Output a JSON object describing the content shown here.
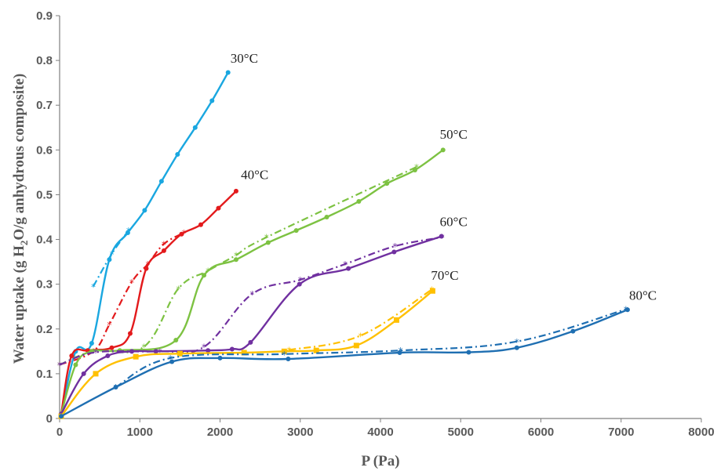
{
  "chart_data": {
    "type": "line",
    "title": "",
    "xlabel": "P (Pa)",
    "ylabel_parts": [
      "Water  uptake  (g H",
      "2",
      "O/g  anhydrous  composite)"
    ],
    "xlim": [
      0,
      8000
    ],
    "ylim": [
      0,
      0.9
    ],
    "x_ticks": [
      0,
      1000,
      2000,
      3000,
      4000,
      5000,
      6000,
      7000,
      8000
    ],
    "y_ticks": [
      0,
      0.1,
      0.2,
      0.3,
      0.4,
      0.5,
      0.6,
      0.7,
      0.8,
      0.9
    ],
    "y_tick_labels": [
      "0",
      "0.1",
      "0.2",
      "0.3",
      "0.4",
      "0.5",
      "0.6",
      "0.7",
      "0.8",
      "0.9"
    ],
    "grid": false,
    "legend": "none",
    "series": [
      {
        "label": "30°C",
        "color": "#1aa7e0",
        "marker": "circle",
        "label_at": [
          2130,
          0.795
        ],
        "adsorption": [
          [
            20,
            0.01
          ],
          [
            200,
            0.15
          ],
          [
            400,
            0.168
          ],
          [
            620,
            0.355
          ],
          [
            850,
            0.415
          ],
          [
            1060,
            0.465
          ],
          [
            1270,
            0.53
          ],
          [
            1470,
            0.59
          ],
          [
            1690,
            0.65
          ],
          [
            1900,
            0.71
          ],
          [
            2100,
            0.773
          ]
        ],
        "desorption": [
          [
            420,
            0.295
          ],
          [
            650,
            0.368
          ],
          [
            860,
            0.42
          ]
        ]
      },
      {
        "label": "40°C",
        "color": "#e31a1c",
        "marker": "circle",
        "label_at": [
          2260,
          0.535
        ],
        "adsorption": [
          [
            20,
            0.01
          ],
          [
            150,
            0.14
          ],
          [
            350,
            0.152
          ],
          [
            650,
            0.158
          ],
          [
            880,
            0.19
          ],
          [
            1080,
            0.335
          ],
          [
            1300,
            0.375
          ],
          [
            1520,
            0.412
          ],
          [
            1760,
            0.433
          ],
          [
            1980,
            0.47
          ],
          [
            2200,
            0.508
          ]
        ],
        "desorption": [
          [
            0,
            0.12
          ],
          [
            420,
            0.15
          ],
          [
            620,
            0.21
          ],
          [
            900,
            0.305
          ],
          [
            1100,
            0.345
          ],
          [
            1300,
            0.39
          ],
          [
            1550,
            0.415
          ]
        ]
      },
      {
        "label": "50°C",
        "color": "#7dc242",
        "marker": "circle",
        "label_at": [
          4740,
          0.625
        ],
        "adsorption": [
          [
            20,
            0.01
          ],
          [
            200,
            0.12
          ],
          [
            400,
            0.15
          ],
          [
            750,
            0.152
          ],
          [
            1450,
            0.175
          ],
          [
            1800,
            0.32
          ],
          [
            2200,
            0.355
          ],
          [
            2600,
            0.393
          ],
          [
            2950,
            0.42
          ],
          [
            3330,
            0.45
          ],
          [
            3730,
            0.485
          ],
          [
            4080,
            0.525
          ],
          [
            4430,
            0.555
          ],
          [
            4780,
            0.6
          ]
        ],
        "desorption": [
          [
            0,
            0.12
          ],
          [
            420,
            0.15
          ],
          [
            1050,
            0.16
          ],
          [
            1480,
            0.29
          ],
          [
            1850,
            0.33
          ],
          [
            2200,
            0.365
          ],
          [
            2580,
            0.405
          ],
          [
            4450,
            0.562
          ]
        ]
      },
      {
        "label": "60°C",
        "color": "#7030a0",
        "marker": "circle",
        "label_at": [
          4740,
          0.43
        ],
        "adsorption": [
          [
            20,
            0.01
          ],
          [
            300,
            0.1
          ],
          [
            600,
            0.14
          ],
          [
            900,
            0.15
          ],
          [
            1200,
            0.15
          ],
          [
            1850,
            0.152
          ],
          [
            2150,
            0.155
          ],
          [
            2380,
            0.17
          ],
          [
            2990,
            0.3
          ],
          [
            3600,
            0.335
          ],
          [
            4170,
            0.372
          ],
          [
            4760,
            0.407
          ]
        ],
        "desorption": [
          [
            0,
            0.12
          ],
          [
            450,
            0.148
          ],
          [
            1250,
            0.15
          ],
          [
            1800,
            0.16
          ],
          [
            2400,
            0.278
          ],
          [
            3000,
            0.31
          ],
          [
            3560,
            0.345
          ],
          [
            4180,
            0.385
          ],
          [
            4770,
            0.405
          ]
        ]
      },
      {
        "label": "70°C",
        "color": "#ffc000",
        "marker": "square",
        "label_at": [
          4630,
          0.31
        ],
        "adsorption": [
          [
            20,
            0.005
          ],
          [
            450,
            0.1
          ],
          [
            950,
            0.138
          ],
          [
            1500,
            0.145
          ],
          [
            2300,
            0.147
          ],
          [
            2800,
            0.15
          ],
          [
            3200,
            0.152
          ],
          [
            3700,
            0.163
          ],
          [
            4200,
            0.22
          ],
          [
            4650,
            0.285
          ]
        ],
        "desorption": [
          [
            2860,
            0.153
          ],
          [
            3750,
            0.185
          ],
          [
            4640,
            0.288
          ]
        ]
      },
      {
        "label": "80°C",
        "color": "#1f6fb2",
        "marker": "circle",
        "label_at": [
          7100,
          0.265
        ],
        "adsorption": [
          [
            20,
            0.005
          ],
          [
            700,
            0.07
          ],
          [
            1400,
            0.127
          ],
          [
            2000,
            0.135
          ],
          [
            2850,
            0.133
          ],
          [
            4240,
            0.147
          ],
          [
            5100,
            0.148
          ],
          [
            5700,
            0.158
          ],
          [
            6400,
            0.195
          ],
          [
            7080,
            0.243
          ]
        ],
        "desorption": [
          [
            700,
            0.07
          ],
          [
            1380,
            0.135
          ],
          [
            2800,
            0.144
          ],
          [
            4250,
            0.152
          ],
          [
            5700,
            0.172
          ],
          [
            7060,
            0.244
          ]
        ]
      }
    ]
  }
}
